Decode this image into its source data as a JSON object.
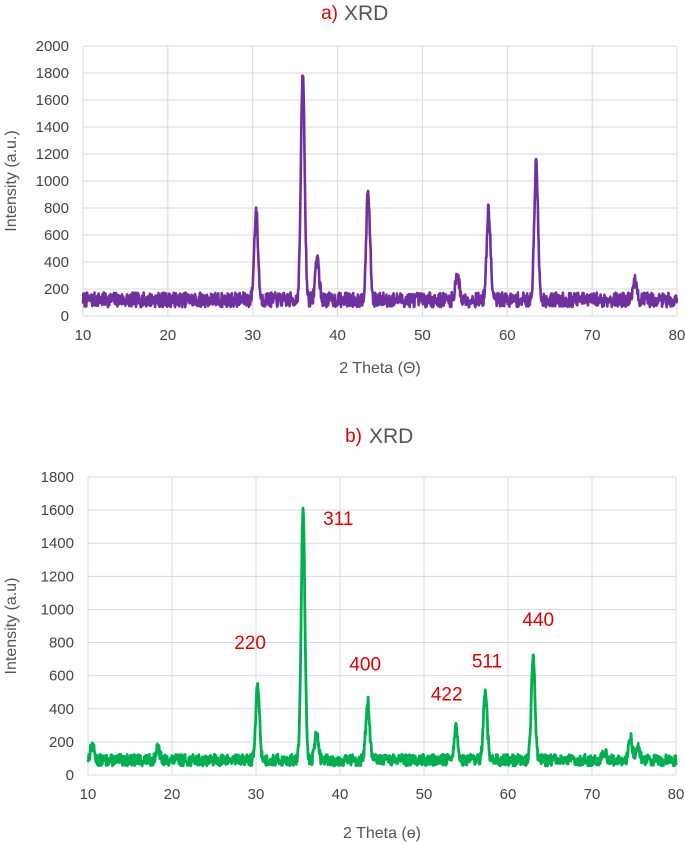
{
  "chart_data": [
    {
      "type": "line",
      "panel_tag": "a)",
      "title": "XRD",
      "xlabel": "2 Theta (Θ)",
      "ylabel": "Intensity (a.u.)",
      "xlim": [
        10,
        80
      ],
      "ylim": [
        0,
        2000
      ],
      "xticks": [
        10,
        20,
        30,
        40,
        50,
        60,
        70,
        80
      ],
      "yticks": [
        0,
        200,
        400,
        600,
        800,
        1000,
        1200,
        1400,
        1600,
        1800,
        2000
      ],
      "grid": true,
      "baseline": 120,
      "noise": 55,
      "color": "#7030a0",
      "peaks": [
        {
          "x": 30.4,
          "y": 780
        },
        {
          "x": 35.9,
          "y": 1790
        },
        {
          "x": 37.6,
          "y": 440
        },
        {
          "x": 43.6,
          "y": 920
        },
        {
          "x": 54.1,
          "y": 320
        },
        {
          "x": 57.8,
          "y": 790
        },
        {
          "x": 63.4,
          "y": 1130
        },
        {
          "x": 75.0,
          "y": 260
        }
      ],
      "annotations": []
    },
    {
      "type": "line",
      "panel_tag": "b)",
      "title": "XRD",
      "xlabel": "2 Theta (ɵ)",
      "ylabel": "Intensity (a.u)",
      "xlim": [
        10,
        80
      ],
      "ylim": [
        0,
        1800
      ],
      "xticks": [
        10,
        20,
        30,
        40,
        50,
        60,
        70,
        80
      ],
      "yticks": [
        0,
        200,
        400,
        600,
        800,
        1000,
        1200,
        1400,
        1600,
        1800
      ],
      "grid": true,
      "baseline": 90,
      "noise": 35,
      "color": "#00b050",
      "peaks": [
        {
          "x": 10.5,
          "y": 180
        },
        {
          "x": 18.3,
          "y": 160
        },
        {
          "x": 30.2,
          "y": 545
        },
        {
          "x": 35.6,
          "y": 1600
        },
        {
          "x": 37.2,
          "y": 250
        },
        {
          "x": 43.3,
          "y": 445
        },
        {
          "x": 53.8,
          "y": 280
        },
        {
          "x": 57.3,
          "y": 495
        },
        {
          "x": 63.0,
          "y": 720
        },
        {
          "x": 71.5,
          "y": 140
        },
        {
          "x": 74.6,
          "y": 220
        },
        {
          "x": 75.5,
          "y": 170
        }
      ],
      "annotations": [
        {
          "text": "220",
          "x": 29.3,
          "y": 760
        },
        {
          "text": "311",
          "x": 39.8,
          "y": 1510
        },
        {
          "text": "400",
          "x": 43.0,
          "y": 630
        },
        {
          "text": "422",
          "x": 52.7,
          "y": 450
        },
        {
          "text": "511",
          "x": 57.5,
          "y": 650
        },
        {
          "text": "440",
          "x": 63.6,
          "y": 900
        }
      ]
    }
  ]
}
